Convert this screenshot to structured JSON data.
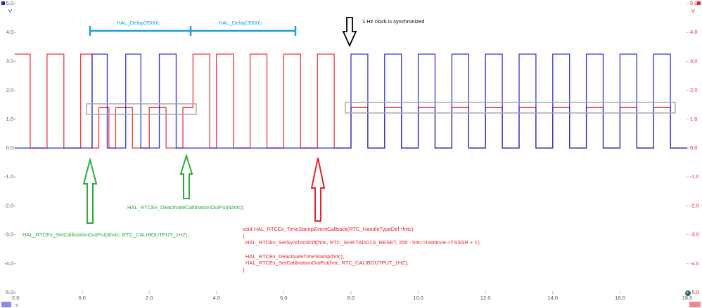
{
  "chart_data": {
    "type": "line",
    "xlim": [
      -2,
      18
    ],
    "xticks": [
      {
        "value": -2,
        "label": "-2.0"
      },
      {
        "value": 0,
        "label": "0.0"
      },
      {
        "value": 2,
        "label": "2.0"
      },
      {
        "value": 4,
        "label": "4.0"
      },
      {
        "value": 6,
        "label": "6.0"
      },
      {
        "value": 8,
        "label": "8.0"
      },
      {
        "value": 10,
        "label": "10.0"
      },
      {
        "value": 12,
        "label": "12.0"
      },
      {
        "value": 14,
        "label": "14.0"
      },
      {
        "value": 16,
        "label": "16.0"
      },
      {
        "value": 18,
        "label": "18.0"
      }
    ],
    "ylim": [
      -5,
      5
    ],
    "yticks": [
      {
        "value": -5,
        "label": "-5.0"
      },
      {
        "value": -4,
        "label": "-4.0"
      },
      {
        "value": -3,
        "label": "-3.0"
      },
      {
        "value": -2,
        "label": "-2.0"
      },
      {
        "value": -1,
        "label": "-1.0"
      },
      {
        "value": 0,
        "label": "0.0"
      },
      {
        "value": 1,
        "label": "1.0"
      },
      {
        "value": 2,
        "label": "2.0"
      },
      {
        "value": 3,
        "label": "3.0"
      },
      {
        "value": 4,
        "label": "4.0"
      },
      {
        "value": 5,
        "label": "5.0"
      }
    ],
    "y2lim": [
      -5,
      5
    ],
    "y2ticks": [
      {
        "value": -5,
        "label": "-5.0"
      },
      {
        "value": -4,
        "label": "-4.0"
      },
      {
        "value": -3,
        "label": "-3.0"
      },
      {
        "value": -2,
        "label": "-2.0"
      },
      {
        "value": -1,
        "label": "-1.0"
      },
      {
        "value": 0,
        "label": "0.0"
      },
      {
        "value": 1,
        "label": "1.0"
      },
      {
        "value": 2,
        "label": "2.0"
      },
      {
        "value": 3,
        "label": "3.0"
      },
      {
        "value": 4,
        "label": "4.0"
      },
      {
        "value": 5,
        "label": "5.0"
      }
    ],
    "y_unit": "V",
    "y2_unit": "V",
    "x_unit": "s",
    "series": [
      {
        "color": "#e8232b",
        "axis": "y2",
        "x": [
          -2,
          -1.54,
          -1.54,
          -1.04,
          -1.04,
          -0.54,
          -0.54,
          -0.04,
          -0.04,
          0.3,
          0.3,
          0.5,
          0.5,
          0.8,
          0.8,
          1.0,
          1.0,
          1.5,
          1.5,
          2.0,
          2.0,
          2.5,
          2.5,
          3.0,
          3.0,
          3.3,
          3.3,
          3.8,
          3.8,
          4.0,
          4.0,
          4.5,
          4.5,
          5.0,
          5.0,
          5.5,
          5.5,
          6.0,
          6.0,
          6.5,
          6.5,
          7.0,
          7.0,
          7.5,
          7.5,
          8.0,
          8.0,
          8.5,
          8.5,
          9.0,
          9.0,
          9.5,
          9.5,
          10.0,
          10.0,
          10.5,
          10.5,
          11.0,
          11.0,
          11.5,
          11.5,
          12.0,
          12.0,
          12.5,
          12.5,
          13.0,
          13.0,
          13.5,
          13.5,
          14.0,
          14.0,
          14.5,
          14.5,
          15.0,
          15.0,
          15.5,
          15.5,
          16.0,
          16.0,
          16.5,
          16.5,
          17.0,
          17.0,
          17.5,
          17.5,
          18
        ],
        "values": [
          3.25,
          3.25,
          0,
          0,
          3.25,
          3.25,
          0,
          0,
          3.25,
          3.25,
          0,
          0,
          1.4,
          1.4,
          0,
          0,
          1.4,
          1.4,
          0,
          0,
          1.4,
          1.4,
          0,
          0,
          1.4,
          1.4,
          3.25,
          3.25,
          0,
          0,
          3.25,
          3.25,
          0,
          0,
          3.25,
          3.25,
          0,
          0,
          3.25,
          3.25,
          0,
          0,
          3.25,
          3.25,
          0,
          0,
          1.4,
          1.4,
          0,
          0,
          1.4,
          1.4,
          0,
          0,
          1.4,
          1.4,
          0,
          0,
          1.4,
          1.4,
          0,
          0,
          1.4,
          1.4,
          0,
          0,
          1.4,
          1.4,
          0,
          0,
          1.4,
          1.4,
          0,
          0,
          1.4,
          1.4,
          0,
          0,
          1.4,
          1.4,
          0,
          0,
          1.4,
          1.4,
          0,
          0
        ]
      },
      {
        "color": "#1f1fd6",
        "x": [
          -2,
          0.3,
          0.3,
          0.75,
          0.75,
          1.3,
          1.3,
          1.75,
          1.75,
          2.3,
          2.3,
          2.8,
          2.8,
          8.0,
          8.0,
          8.5,
          8.5,
          9.0,
          9.0,
          9.5,
          9.5,
          10.0,
          10.0,
          10.5,
          10.5,
          11.0,
          11.0,
          11.5,
          11.5,
          12.0,
          12.0,
          12.5,
          12.5,
          13.0,
          13.0,
          13.5,
          13.5,
          14.0,
          14.0,
          14.5,
          14.5,
          15.0,
          15.0,
          15.5,
          15.5,
          16.0,
          16.0,
          16.5,
          16.5,
          17.0,
          17.0,
          17.5,
          17.5,
          18
        ],
        "values": [
          0,
          0,
          3.25,
          3.25,
          0,
          0,
          3.25,
          3.25,
          0,
          0,
          3.25,
          3.25,
          0,
          0,
          3.25,
          3.25,
          0,
          0,
          3.25,
          3.25,
          0,
          0,
          3.25,
          3.25,
          0,
          0,
          3.25,
          3.25,
          0,
          0,
          3.25,
          3.25,
          0,
          0,
          3.25,
          3.25,
          0,
          0,
          3.25,
          3.25,
          0,
          0,
          3.25,
          3.25,
          0,
          0,
          3.25,
          3.25,
          0,
          0,
          3.25,
          3.25,
          0,
          0
        ]
      }
    ],
    "annotations": [
      "HAL_Delay(3500);",
      "HAL_Delay(3500);",
      "1 Hz clock is synchronized",
      "HAL_RTCEx_DeactivateCalibrationOutPut(&hrtc);",
      "HAL_RTCEx_SetCalibrationOutPut(&hrtc; RTC_CALIBOUTPUT_1HZ);",
      "void HAL_RTCEx_TimeStampEventCallback(RTC_HandleTypeDef *hrtc)",
      "{",
      "HAL_RTCEx_SetSynchroShift(hrtc, RTC_SHIFTADD1S_RESET, 255 - hrtc->Instance->TSSSR + 1);",
      "HAL_RTCEx_DeactivateTimeStamp(hrtc);",
      "HAL_RTCEx_SetCalibrationOutPut(hrtc, RTC_CALIBOUTPUT_1HZ);",
      "}"
    ]
  }
}
